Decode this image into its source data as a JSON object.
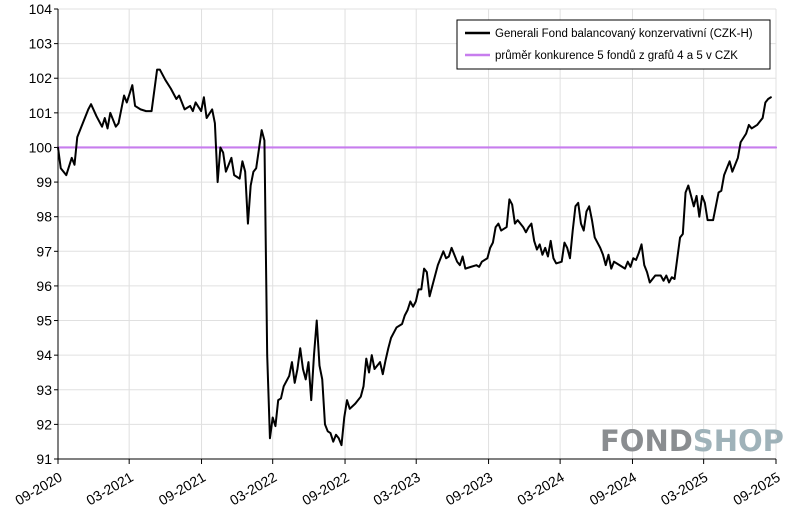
{
  "chart_data": {
    "type": "line",
    "title": "",
    "xlabel": "",
    "ylabel": "",
    "ylim": [
      91,
      104
    ],
    "xlim": [
      "2020-09",
      "2025-09"
    ],
    "y_ticks": [
      "91",
      "92",
      "93",
      "94",
      "95",
      "96",
      "97",
      "98",
      "99",
      "100",
      "101",
      "102",
      "103",
      "104"
    ],
    "x_ticks": [
      "09-2020",
      "03-2021",
      "09-2021",
      "03-2022",
      "09-2022",
      "03-2023",
      "09-2023",
      "03-2024",
      "09-2024",
      "03-2025",
      "09-2025"
    ],
    "grid": true,
    "legend_position": "top-right",
    "series": [
      {
        "name": "Generali Fond balancovaný konzervativní (CZK-H)",
        "color": "#000000",
        "points": [
          [
            "2020-09-01",
            100.0
          ],
          [
            "2020-09-08",
            99.4
          ],
          [
            "2020-09-22",
            99.2
          ],
          [
            "2020-10-06",
            99.7
          ],
          [
            "2020-10-13",
            99.5
          ],
          [
            "2020-10-20",
            100.3
          ],
          [
            "2020-11-03",
            100.7
          ],
          [
            "2020-11-17",
            101.1
          ],
          [
            "2020-11-24",
            101.25
          ],
          [
            "2020-12-08",
            100.9
          ],
          [
            "2020-12-22",
            100.6
          ],
          [
            "2020-12-29",
            100.85
          ],
          [
            "2021-01-05",
            100.55
          ],
          [
            "2021-01-12",
            101.0
          ],
          [
            "2021-01-26",
            100.6
          ],
          [
            "2021-02-02",
            100.7
          ],
          [
            "2021-02-16",
            101.5
          ],
          [
            "2021-02-23",
            101.3
          ],
          [
            "2021-03-09",
            101.8
          ],
          [
            "2021-03-16",
            101.2
          ],
          [
            "2021-03-30",
            101.1
          ],
          [
            "2021-04-13",
            101.05
          ],
          [
            "2021-04-27",
            101.05
          ],
          [
            "2021-05-11",
            102.25
          ],
          [
            "2021-05-18",
            102.25
          ],
          [
            "2021-06-01",
            101.95
          ],
          [
            "2021-06-15",
            101.7
          ],
          [
            "2021-06-29",
            101.4
          ],
          [
            "2021-07-06",
            101.5
          ],
          [
            "2021-07-20",
            101.1
          ],
          [
            "2021-08-03",
            101.2
          ],
          [
            "2021-08-10",
            101.05
          ],
          [
            "2021-08-17",
            101.3
          ],
          [
            "2021-08-31",
            101.05
          ],
          [
            "2021-09-07",
            101.45
          ],
          [
            "2021-09-14",
            100.85
          ],
          [
            "2021-09-28",
            101.1
          ],
          [
            "2021-10-05",
            100.7
          ],
          [
            "2021-10-12",
            99.0
          ],
          [
            "2021-10-19",
            100.0
          ],
          [
            "2021-10-26",
            99.85
          ],
          [
            "2021-11-02",
            99.3
          ],
          [
            "2021-11-09",
            99.5
          ],
          [
            "2021-11-16",
            99.7
          ],
          [
            "2021-11-23",
            99.2
          ],
          [
            "2021-12-07",
            99.1
          ],
          [
            "2021-12-14",
            99.6
          ],
          [
            "2021-12-21",
            99.3
          ],
          [
            "2021-12-28",
            97.8
          ],
          [
            "2022-01-04",
            98.9
          ],
          [
            "2022-01-11",
            99.3
          ],
          [
            "2022-01-18",
            99.4
          ],
          [
            "2022-02-01",
            100.5
          ],
          [
            "2022-02-08",
            100.2
          ],
          [
            "2022-02-15",
            94.0
          ],
          [
            "2022-02-22",
            91.6
          ],
          [
            "2022-03-01",
            92.2
          ],
          [
            "2022-03-08",
            91.95
          ],
          [
            "2022-03-15",
            92.7
          ],
          [
            "2022-03-22",
            92.75
          ],
          [
            "2022-03-29",
            93.1
          ],
          [
            "2022-04-12",
            93.4
          ],
          [
            "2022-04-19",
            93.8
          ],
          [
            "2022-04-26",
            93.2
          ],
          [
            "2022-05-03",
            93.6
          ],
          [
            "2022-05-10",
            94.2
          ],
          [
            "2022-05-17",
            93.6
          ],
          [
            "2022-05-24",
            93.3
          ],
          [
            "2022-05-31",
            93.8
          ],
          [
            "2022-06-07",
            92.7
          ],
          [
            "2022-06-14",
            94.0
          ],
          [
            "2022-06-21",
            95.0
          ],
          [
            "2022-06-28",
            93.7
          ],
          [
            "2022-07-05",
            93.3
          ],
          [
            "2022-07-12",
            92.0
          ],
          [
            "2022-07-19",
            91.8
          ],
          [
            "2022-07-26",
            91.75
          ],
          [
            "2022-08-02",
            91.5
          ],
          [
            "2022-08-09",
            91.7
          ],
          [
            "2022-08-16",
            91.6
          ],
          [
            "2022-08-23",
            91.4
          ],
          [
            "2022-08-30",
            92.2
          ],
          [
            "2022-09-06",
            92.7
          ],
          [
            "2022-09-13",
            92.45
          ],
          [
            "2022-09-27",
            92.6
          ],
          [
            "2022-10-11",
            92.8
          ],
          [
            "2022-10-18",
            93.1
          ],
          [
            "2022-10-25",
            93.9
          ],
          [
            "2022-11-01",
            93.5
          ],
          [
            "2022-11-08",
            94.0
          ],
          [
            "2022-11-15",
            93.6
          ],
          [
            "2022-11-29",
            93.8
          ],
          [
            "2022-12-06",
            93.45
          ],
          [
            "2022-12-13",
            93.85
          ],
          [
            "2022-12-20",
            94.2
          ],
          [
            "2022-12-27",
            94.5
          ],
          [
            "2023-01-10",
            94.8
          ],
          [
            "2023-01-24",
            94.9
          ],
          [
            "2023-01-31",
            95.15
          ],
          [
            "2023-02-07",
            95.3
          ],
          [
            "2023-02-14",
            95.55
          ],
          [
            "2023-02-21",
            95.4
          ],
          [
            "2023-02-28",
            95.55
          ],
          [
            "2023-03-07",
            95.9
          ],
          [
            "2023-03-14",
            95.9
          ],
          [
            "2023-03-21",
            96.5
          ],
          [
            "2023-03-28",
            96.4
          ],
          [
            "2023-04-04",
            95.7
          ],
          [
            "2023-04-11",
            96.0
          ],
          [
            "2023-04-25",
            96.6
          ],
          [
            "2023-05-09",
            97.0
          ],
          [
            "2023-05-16",
            96.8
          ],
          [
            "2023-05-23",
            96.85
          ],
          [
            "2023-05-30",
            97.1
          ],
          [
            "2023-06-06",
            96.9
          ],
          [
            "2023-06-13",
            96.7
          ],
          [
            "2023-06-20",
            96.6
          ],
          [
            "2023-06-27",
            96.85
          ],
          [
            "2023-07-04",
            96.5
          ],
          [
            "2023-07-18",
            96.55
          ],
          [
            "2023-08-01",
            96.6
          ],
          [
            "2023-08-08",
            96.55
          ],
          [
            "2023-08-15",
            96.7
          ],
          [
            "2023-08-29",
            96.8
          ],
          [
            "2023-09-05",
            97.1
          ],
          [
            "2023-09-12",
            97.25
          ],
          [
            "2023-09-19",
            97.7
          ],
          [
            "2023-09-26",
            97.8
          ],
          [
            "2023-10-03",
            97.6
          ],
          [
            "2023-10-17",
            97.7
          ],
          [
            "2023-10-24",
            98.5
          ],
          [
            "2023-10-31",
            98.35
          ],
          [
            "2023-11-07",
            97.8
          ],
          [
            "2023-11-14",
            97.9
          ],
          [
            "2023-11-28",
            97.7
          ],
          [
            "2023-12-05",
            97.55
          ],
          [
            "2023-12-12",
            97.7
          ],
          [
            "2023-12-19",
            97.8
          ],
          [
            "2023-12-26",
            97.3
          ],
          [
            "2024-01-02",
            97.05
          ],
          [
            "2024-01-09",
            97.2
          ],
          [
            "2024-01-16",
            96.9
          ],
          [
            "2024-01-23",
            97.1
          ],
          [
            "2024-01-30",
            96.85
          ],
          [
            "2024-02-06",
            97.3
          ],
          [
            "2024-02-13",
            96.8
          ],
          [
            "2024-02-20",
            96.65
          ],
          [
            "2024-03-05",
            96.7
          ],
          [
            "2024-03-12",
            97.25
          ],
          [
            "2024-03-19",
            97.1
          ],
          [
            "2024-03-26",
            96.8
          ],
          [
            "2024-04-02",
            97.6
          ],
          [
            "2024-04-09",
            98.3
          ],
          [
            "2024-04-16",
            98.4
          ],
          [
            "2024-04-23",
            97.8
          ],
          [
            "2024-04-30",
            97.6
          ],
          [
            "2024-05-07",
            98.15
          ],
          [
            "2024-05-14",
            98.3
          ],
          [
            "2024-05-21",
            97.9
          ],
          [
            "2024-05-28",
            97.4
          ],
          [
            "2024-06-11",
            97.1
          ],
          [
            "2024-06-18",
            96.9
          ],
          [
            "2024-06-25",
            96.6
          ],
          [
            "2024-07-02",
            96.9
          ],
          [
            "2024-07-09",
            96.5
          ],
          [
            "2024-07-16",
            96.7
          ],
          [
            "2024-07-30",
            96.6
          ],
          [
            "2024-08-13",
            96.5
          ],
          [
            "2024-08-20",
            96.7
          ],
          [
            "2024-08-27",
            96.55
          ],
          [
            "2024-09-03",
            96.8
          ],
          [
            "2024-09-10",
            96.75
          ],
          [
            "2024-09-17",
            96.95
          ],
          [
            "2024-09-24",
            97.2
          ],
          [
            "2024-10-01",
            96.6
          ],
          [
            "2024-10-08",
            96.4
          ],
          [
            "2024-10-15",
            96.1
          ],
          [
            "2024-10-22",
            96.2
          ],
          [
            "2024-10-29",
            96.3
          ],
          [
            "2024-11-12",
            96.3
          ],
          [
            "2024-11-19",
            96.15
          ],
          [
            "2024-11-26",
            96.3
          ],
          [
            "2024-12-03",
            96.1
          ],
          [
            "2024-12-10",
            96.25
          ],
          [
            "2024-12-17",
            96.2
          ],
          [
            "2024-12-24",
            96.8
          ],
          [
            "2024-12-31",
            97.4
          ],
          [
            "2025-01-07",
            97.5
          ],
          [
            "2025-01-14",
            98.7
          ],
          [
            "2025-01-21",
            98.9
          ],
          [
            "2025-01-28",
            98.6
          ],
          [
            "2025-02-04",
            98.3
          ],
          [
            "2025-02-11",
            98.6
          ],
          [
            "2025-02-18",
            98.0
          ],
          [
            "2025-02-25",
            98.6
          ],
          [
            "2025-03-04",
            98.4
          ],
          [
            "2025-03-11",
            97.9
          ],
          [
            "2025-03-25",
            97.9
          ],
          [
            "2025-04-01",
            98.3
          ],
          [
            "2025-04-08",
            98.7
          ],
          [
            "2025-04-15",
            98.75
          ],
          [
            "2025-04-22",
            99.2
          ],
          [
            "2025-05-06",
            99.6
          ],
          [
            "2025-05-13",
            99.3
          ],
          [
            "2025-05-27",
            99.7
          ],
          [
            "2025-06-03",
            100.15
          ],
          [
            "2025-06-17",
            100.4
          ],
          [
            "2025-06-24",
            100.65
          ],
          [
            "2025-07-01",
            100.55
          ],
          [
            "2025-07-15",
            100.65
          ],
          [
            "2025-07-29",
            100.85
          ],
          [
            "2025-08-05",
            101.3
          ],
          [
            "2025-08-12",
            101.4
          ],
          [
            "2025-08-19",
            101.45
          ]
        ]
      },
      {
        "name": "průměr konkurence 5 fondů z grafů 4 a 5 v CZK",
        "color": "#c77dee",
        "points": [
          [
            "2020-09-01",
            100.0
          ],
          [
            "2025-09-01",
            100.0
          ]
        ]
      }
    ]
  },
  "watermark": {
    "left": "FOND",
    "right": "SHOP",
    "left_color": "#8a8d90",
    "right_color": "#9fb2b9"
  }
}
